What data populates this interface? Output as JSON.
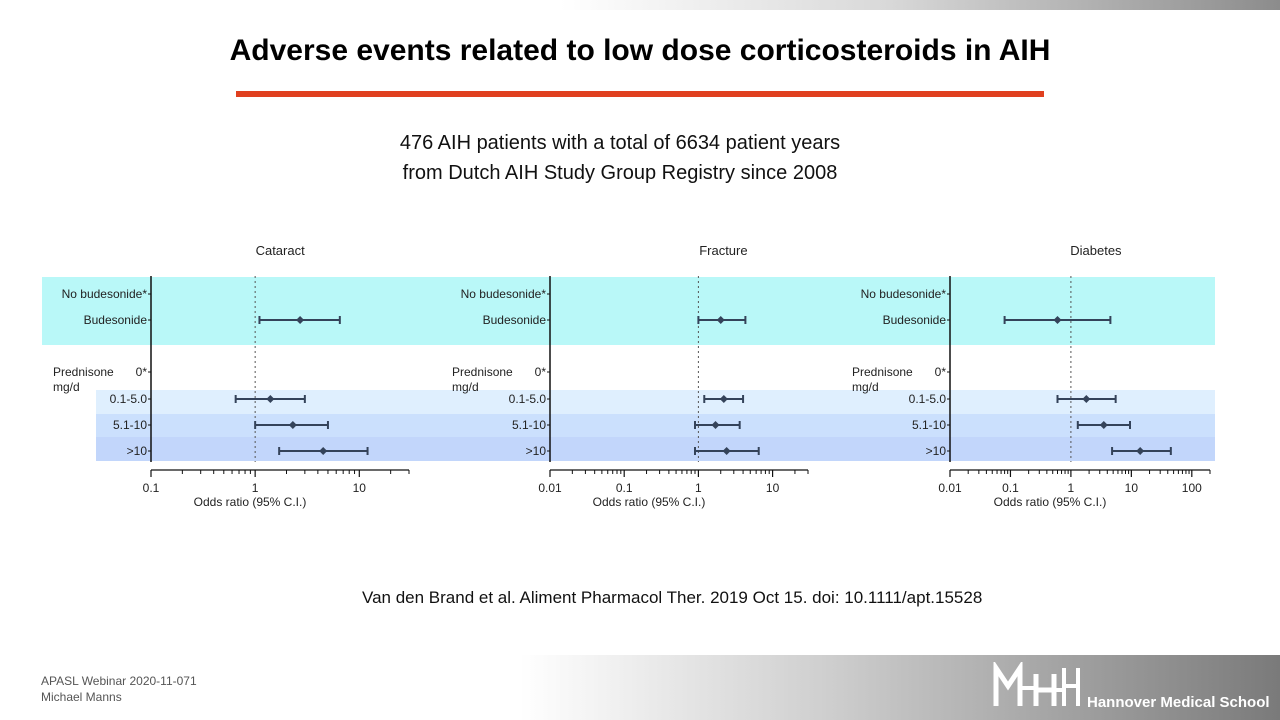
{
  "title": "Adverse events related to low dose corticosteroids in AIH",
  "subtitle": {
    "line1": "476 AIH patients with a total of 6634 patient years",
    "line2": "from Dutch AIH Study Group Registry since 2008"
  },
  "citation": "Van den Brand et al. Aliment Pharmacol Ther. 2019 Oct 15. doi: 10.1111/apt.15528",
  "footer": {
    "line1": "APASL Webinar 2020-11-071",
    "line2": "Michael Manns"
  },
  "logo": {
    "letters": "MHH",
    "text": "Hannover Medical School",
    "icon": "mhh-logo-icon"
  },
  "colors": {
    "accent_rule": "#e0401f",
    "budesonide_band": "#b9f8f8",
    "band_0_1_5": "#dfeffe",
    "band_5_1_10": "#cbe0fd",
    "band_gt10": "#c2d6fb",
    "ci_line": "#34435a"
  },
  "chart_data": [
    {
      "type": "forest",
      "title": "Cataract",
      "xlabel": "Odds ratio (95% C.I.)",
      "xscale": "log",
      "xlim": [
        0.1,
        30
      ],
      "xticks": [
        "0.1",
        "1",
        "10"
      ],
      "reference_line": 1,
      "rows": [
        {
          "label": "No budesonide*",
          "or": null,
          "lower": null,
          "upper": null
        },
        {
          "label": "Budesonide",
          "or": 2.7,
          "lower": 1.1,
          "upper": 6.5
        },
        {
          "label": "Prednisone mg/d",
          "ref_label": "0*",
          "or": null,
          "lower": null,
          "upper": null
        },
        {
          "label": "0.1-5.0",
          "or": 1.4,
          "lower": 0.65,
          "upper": 3.0
        },
        {
          "label": "5.1-10",
          "or": 2.3,
          "lower": 1.0,
          "upper": 5.0
        },
        {
          "label": ">10",
          "or": 4.5,
          "lower": 1.7,
          "upper": 12
        }
      ]
    },
    {
      "type": "forest",
      "title": "Fracture",
      "xlabel": "Odds ratio (95% C.I.)",
      "xscale": "log",
      "xlim": [
        0.01,
        30
      ],
      "xticks": [
        "0.01",
        "0.1",
        "1",
        "10"
      ],
      "reference_line": 1,
      "rows": [
        {
          "label": "No budesonide*",
          "or": null,
          "lower": null,
          "upper": null
        },
        {
          "label": "Budesonide",
          "or": 2.0,
          "lower": 1.0,
          "upper": 4.3
        },
        {
          "label": "Prednisone mg/d",
          "ref_label": "0*",
          "or": null,
          "lower": null,
          "upper": null
        },
        {
          "label": "0.1-5.0",
          "or": 2.2,
          "lower": 1.2,
          "upper": 4.0
        },
        {
          "label": "5.1-10",
          "or": 1.7,
          "lower": 0.9,
          "upper": 3.6
        },
        {
          "label": ">10",
          "or": 2.4,
          "lower": 0.9,
          "upper": 6.5
        }
      ]
    },
    {
      "type": "forest",
      "title": "Diabetes",
      "xlabel": "Odds ratio (95% C.I.)",
      "xscale": "log",
      "xlim": [
        0.01,
        200
      ],
      "xticks": [
        "0.01",
        "0.1",
        "1",
        "10",
        "100"
      ],
      "reference_line": 1,
      "rows": [
        {
          "label": "No budesonide*",
          "or": null,
          "lower": null,
          "upper": null
        },
        {
          "label": "Budesonide",
          "or": 0.6,
          "lower": 0.08,
          "upper": 4.5
        },
        {
          "label": "Prednisone mg/d",
          "ref_label": "0*",
          "or": null,
          "lower": null,
          "upper": null
        },
        {
          "label": "0.1-5.0",
          "or": 1.8,
          "lower": 0.6,
          "upper": 5.5
        },
        {
          "label": "5.1-10",
          "or": 3.5,
          "lower": 1.3,
          "upper": 9.5
        },
        {
          "label": ">10",
          "or": 14,
          "lower": 4.8,
          "upper": 45
        }
      ]
    }
  ]
}
